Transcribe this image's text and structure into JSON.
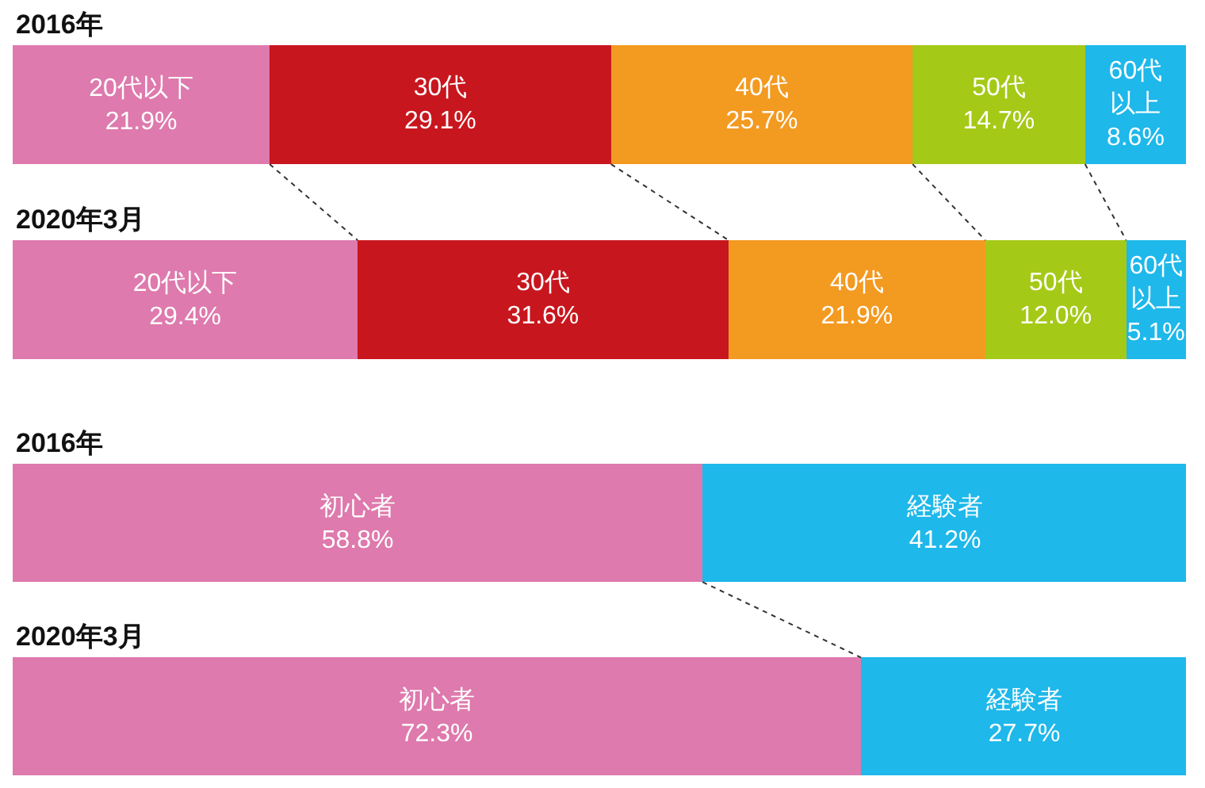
{
  "chart_data": [
    {
      "type": "bar",
      "orientation": "horizontal",
      "stacked": true,
      "categories": [
        "2016年",
        "2020年3月"
      ],
      "xlim": [
        0,
        100
      ],
      "tick_labels": false,
      "legend": false,
      "series": [
        {
          "name": "20代以下",
          "color": "#de7aad",
          "values": [
            21.9,
            29.4
          ],
          "value_labels": [
            "21.9%",
            "29.4%"
          ]
        },
        {
          "name": "30代",
          "color": "#c8161e",
          "values": [
            29.1,
            31.6
          ],
          "value_labels": [
            "29.1%",
            "31.6%"
          ]
        },
        {
          "name": "40代",
          "color": "#f39a21",
          "values": [
            25.7,
            21.9
          ],
          "value_labels": [
            "25.7%",
            "21.9%"
          ]
        },
        {
          "name": "50代",
          "color": "#a5c917",
          "values": [
            14.7,
            12.0
          ],
          "value_labels": [
            "14.7%",
            "12.0%"
          ]
        },
        {
          "name": "60代以上",
          "color": "#1eb8ea",
          "values": [
            8.6,
            5.1
          ],
          "value_labels": [
            "8.6%",
            "5.1%"
          ]
        }
      ]
    },
    {
      "type": "bar",
      "orientation": "horizontal",
      "stacked": true,
      "categories": [
        "2016年",
        "2020年3月"
      ],
      "xlim": [
        0,
        100
      ],
      "tick_labels": false,
      "legend": false,
      "series": [
        {
          "name": "初心者",
          "color": "#de7aad",
          "values": [
            58.8,
            72.3
          ],
          "value_labels": [
            "58.8%",
            "72.3%"
          ]
        },
        {
          "name": "経験者",
          "color": "#1eb8ea",
          "values": [
            41.2,
            27.7
          ],
          "value_labels": [
            "41.2%",
            "27.7%"
          ]
        }
      ]
    }
  ]
}
